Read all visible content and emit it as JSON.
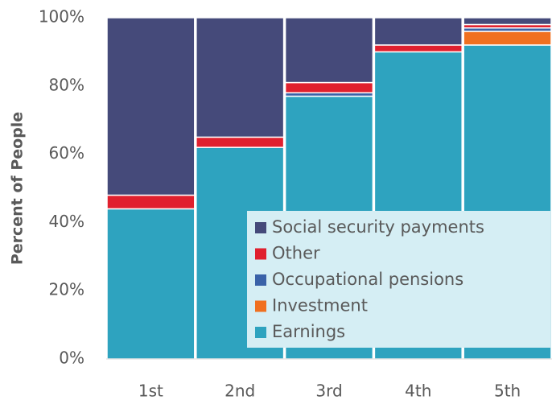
{
  "chart_data": {
    "type": "stacked_bar",
    "y_label": "Percent of People",
    "categories": [
      "1st",
      "2nd",
      "3rd",
      "4th",
      "5th"
    ],
    "series": [
      {
        "name": "Social security payments",
        "color": "#454a7a",
        "values": [
          52,
          35,
          19,
          8,
          2
        ]
      },
      {
        "name": "Other",
        "color": "#e0202e",
        "values": [
          4,
          3,
          3,
          2,
          1
        ]
      },
      {
        "name": "Occupational pensions",
        "color": "#3a62a8",
        "values": [
          0,
          0,
          1,
          0,
          1
        ]
      },
      {
        "name": "Investment",
        "color": "#f07020",
        "values": [
          0,
          0,
          0,
          0,
          4
        ]
      },
      {
        "name": "Earnings",
        "color": "#2ea3bf",
        "values": [
          44,
          62,
          77,
          90,
          92
        ]
      }
    ],
    "ylim": [
      0,
      100
    ],
    "yticks": [
      {
        "value": 0,
        "label": "0%"
      },
      {
        "value": 20,
        "label": "20%"
      },
      {
        "value": 40,
        "label": "40%"
      },
      {
        "value": 60,
        "label": "60%"
      },
      {
        "value": 80,
        "label": "80%"
      },
      {
        "value": 100,
        "label": "100%"
      }
    ],
    "legend_background": "#d5eef4"
  }
}
